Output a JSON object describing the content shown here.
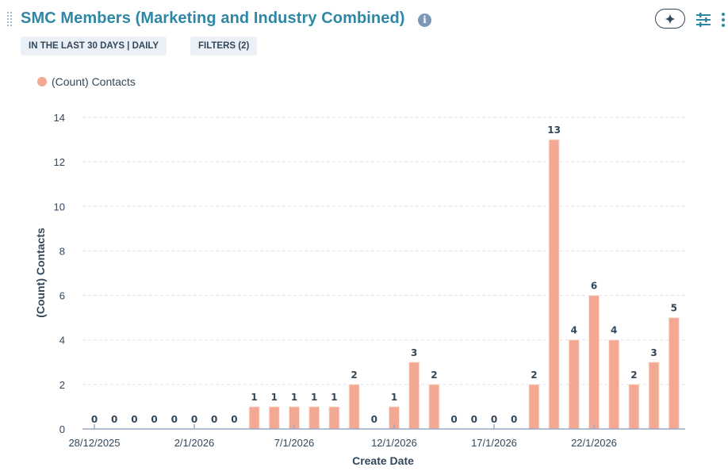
{
  "header": {
    "title": "SMC Members (Marketing and Industry Combined)",
    "info_icon": "info-circle-icon",
    "date_chip": "IN THE LAST 30 DAYS | DAILY",
    "filters_chip": "FILTERS (2)",
    "ai_button_icon": "sparkle-icon",
    "settings_icon": "sliders-icon",
    "more_icon": "vertical-dots-icon",
    "drag_icon": "drag-handle-icon"
  },
  "colors": {
    "title": "#2e88a5",
    "bar": "#f2a892",
    "text": "#33475b",
    "grid": "#dfe3eb",
    "axis": "#99acc2"
  },
  "chart_data": {
    "type": "bar",
    "title": "SMC Members (Marketing and Industry Combined)",
    "xlabel": "Create Date",
    "ylabel": "(Count) Contacts",
    "legend": [
      "(Count) Contacts"
    ],
    "legend_position": "top-left",
    "grid": true,
    "ylim": [
      0,
      14
    ],
    "yticks": [
      0,
      2,
      4,
      6,
      8,
      10,
      12,
      14
    ],
    "categories": [
      "28/12/2025",
      "29/12/2025",
      "30/12/2025",
      "31/12/2025",
      "1/1/2026",
      "2/1/2026",
      "3/1/2026",
      "4/1/2026",
      "5/1/2026",
      "6/1/2026",
      "7/1/2026",
      "8/1/2026",
      "9/1/2026",
      "10/1/2026",
      "11/1/2026",
      "12/1/2026",
      "13/1/2026",
      "14/1/2026",
      "15/1/2026",
      "16/1/2026",
      "17/1/2026",
      "18/1/2026",
      "19/1/2026",
      "20/1/2026",
      "21/1/2026",
      "22/1/2026",
      "23/1/2026",
      "24/1/2026",
      "25/1/2026",
      "26/1/2026"
    ],
    "xtick_labels": [
      "28/12/2025",
      "2/1/2026",
      "7/1/2026",
      "12/1/2026",
      "17/1/2026",
      "22/1/2026"
    ],
    "series": [
      {
        "name": "(Count) Contacts",
        "values": [
          0,
          0,
          0,
          0,
          0,
          0,
          0,
          0,
          1,
          1,
          1,
          1,
          1,
          2,
          0,
          1,
          3,
          2,
          0,
          0,
          0,
          0,
          2,
          13,
          4,
          6,
          4,
          2,
          3,
          5
        ]
      }
    ]
  }
}
